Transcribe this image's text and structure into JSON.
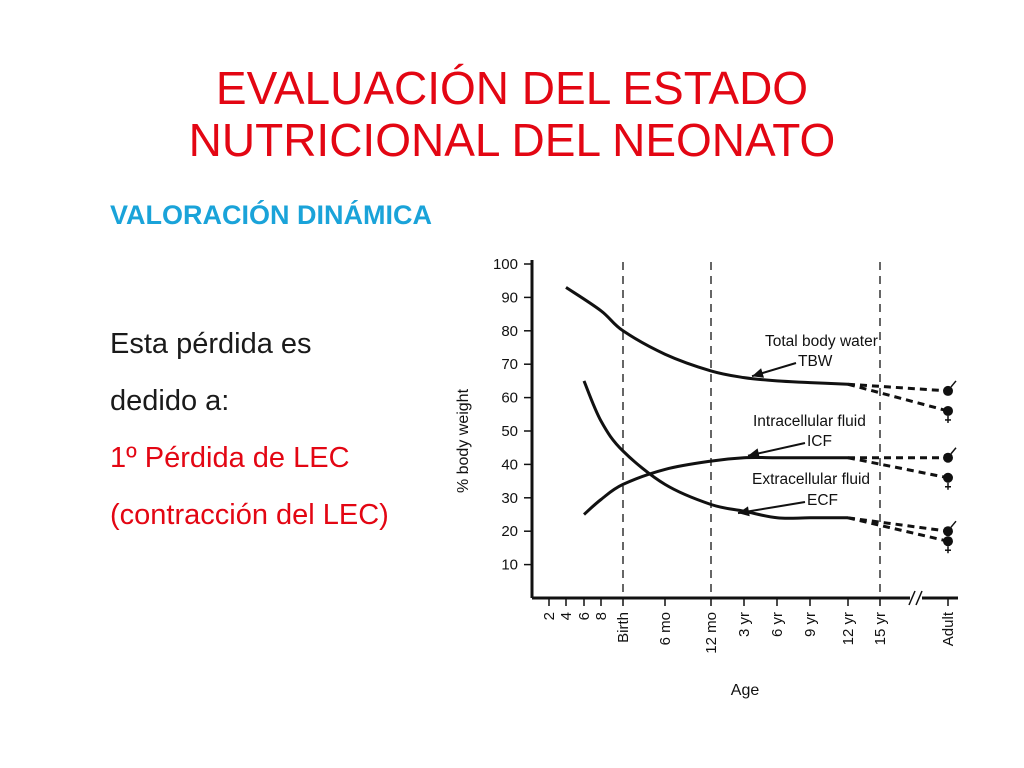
{
  "slide": {
    "title_lines": [
      "EVALUACIÓN DEL ESTADO",
      "NUTRICIONAL DEL NEONATO"
    ],
    "subtitle": "VALORACIÓN DINÁMICA",
    "body_lines": [
      {
        "text": "Esta pérdida es",
        "style": "dark"
      },
      {
        "text": "dedido a:",
        "style": "dark"
      },
      {
        "text": "1º Pérdida de LEC",
        "style": "red"
      },
      {
        "text": "(contracción del LEC)",
        "style": "red"
      }
    ],
    "colors": {
      "title": "#e30613",
      "subtitle": "#1aa3d9",
      "body": "#1a1a1a",
      "highlight": "#e30613"
    }
  },
  "chart_data": {
    "type": "line",
    "ylabel": "% body weight",
    "xlabel": "Age",
    "ylim": [
      0,
      100
    ],
    "yticks": [
      10,
      20,
      30,
      40,
      50,
      60,
      70,
      80,
      90,
      100
    ],
    "xticks": [
      "2",
      "4",
      "6",
      "8",
      "Birth",
      "6 mo",
      "12 mo",
      "3 yr",
      "6 yr",
      "9 yr",
      "12 yr",
      "15 yr",
      "Adult"
    ],
    "vertical_dashed_lines_at": [
      "Birth",
      "12 mo",
      "15 yr"
    ],
    "axis_break_before": "Adult",
    "series": [
      {
        "name": "Total body water",
        "short": "TBW",
        "x": [
          "4",
          "8",
          "Birth",
          "6 mo",
          "12 mo",
          "3 yr",
          "6 yr",
          "9 yr",
          "12 yr"
        ],
        "values": [
          93,
          86,
          80,
          73,
          68,
          66,
          65,
          64.5,
          64
        ],
        "adult": {
          "male": 62,
          "female": 56
        }
      },
      {
        "name": "Intracellular fluid",
        "short": "ICF",
        "x": [
          "6",
          "8",
          "Birth",
          "6 mo",
          "12 mo",
          "3 yr",
          "6 yr",
          "9 yr",
          "12 yr"
        ],
        "values": [
          25,
          29.5,
          34,
          38.5,
          41,
          42,
          42,
          42,
          42
        ],
        "adult": {
          "male": 42,
          "female": 36
        }
      },
      {
        "name": "Extracellular fluid",
        "short": "ECF",
        "x": [
          "6",
          "8",
          "Birth",
          "6 mo",
          "12 mo",
          "3 yr",
          "6 yr",
          "9 yr",
          "12 yr"
        ],
        "values": [
          65,
          53,
          44,
          34,
          28,
          26,
          24,
          24,
          24
        ],
        "adult": {
          "male": 20,
          "female": 17
        }
      }
    ],
    "annotations": [
      {
        "text": "Total body water",
        "points_to": "Total body water"
      },
      {
        "text": "TBW",
        "points_to": "Total body water"
      },
      {
        "text": "Intracellular fluid",
        "points_to": "Intracellular fluid"
      },
      {
        "text": "ICF",
        "points_to": "Intracellular fluid"
      },
      {
        "text": "Extracellular fluid",
        "points_to": "Extracellular fluid"
      },
      {
        "text": "ECF",
        "points_to": "Extracellular fluid"
      }
    ]
  }
}
